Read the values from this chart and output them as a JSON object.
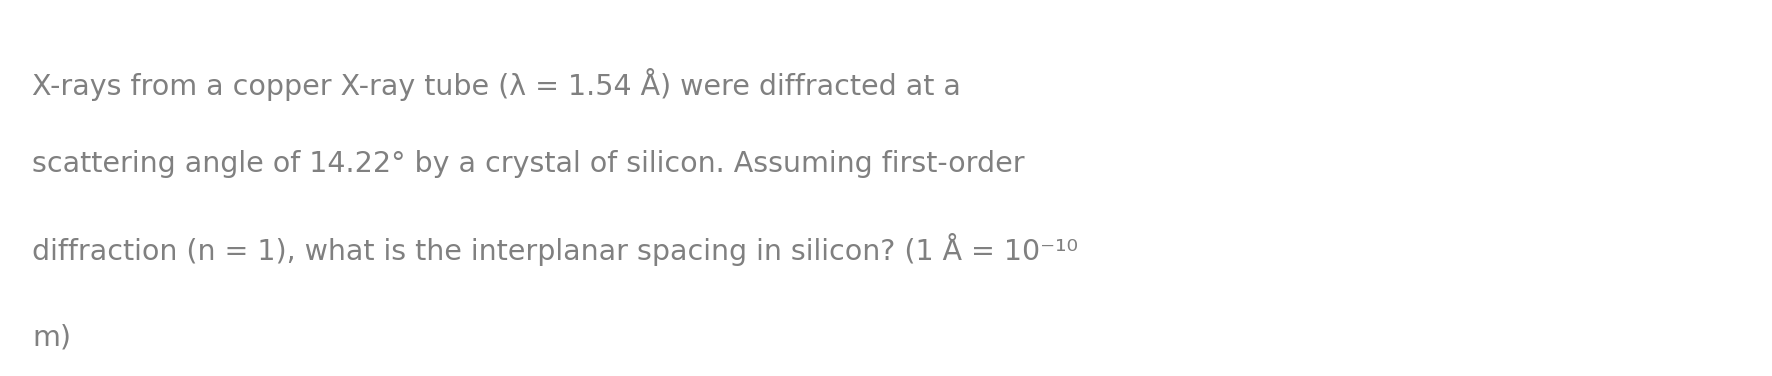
{
  "background_color": "#ffffff",
  "text_color": "#808080",
  "font_size": 20.5,
  "line1": "X-rays from a copper X-ray tube (λ = 1.54 Å) were diffracted at a",
  "line2": "scattering angle of 14.22° by a crystal of silicon. Assuming first-order",
  "line3_main": "diffraction (n = 1), what is the interplanar spacing in silicon? (1 Å = 10",
  "line3_superscript": "⁻¹⁰",
  "line4": "m)"
}
